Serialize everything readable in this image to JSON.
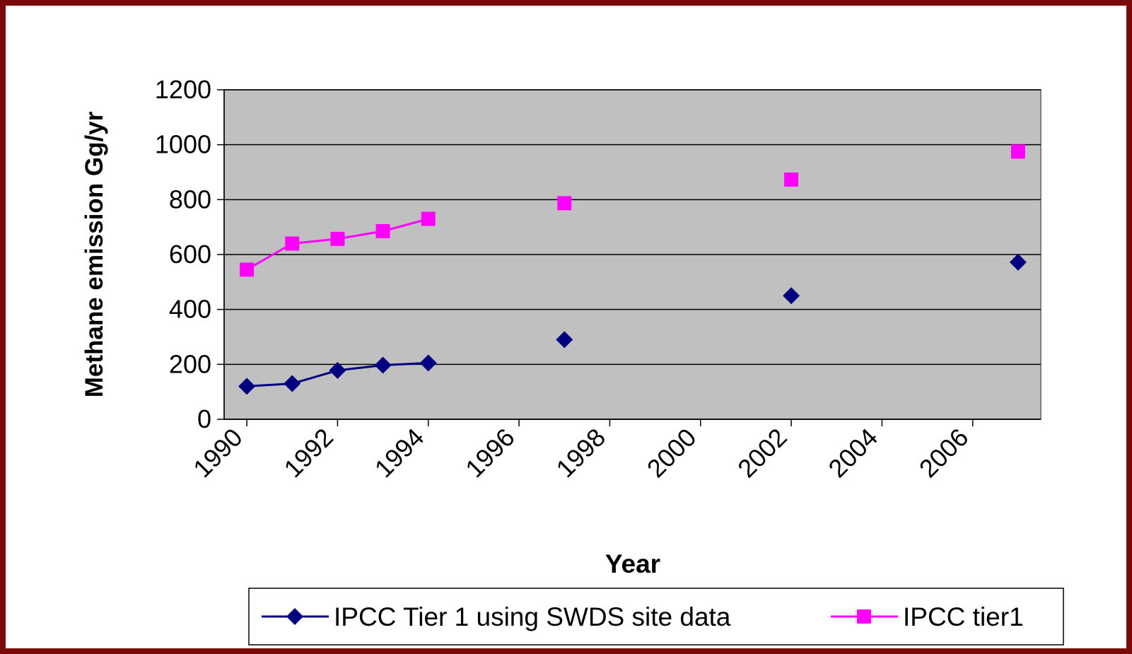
{
  "chart_data": {
    "type": "line",
    "x_label": "Year",
    "y_label": "Methane emission Gg/yr",
    "x": [
      1990,
      1991,
      1992,
      1993,
      1994,
      1995,
      1996,
      1997,
      1998,
      1999,
      2000,
      2001,
      2002,
      2003,
      2004,
      2005,
      2006,
      2007
    ],
    "series": [
      {
        "name": "IPCC Tier 1 using SWDS site data",
        "color": "#000080",
        "marker": "diamond",
        "values": [
          120,
          130,
          178,
          197,
          205,
          null,
          null,
          290,
          null,
          null,
          null,
          null,
          450,
          null,
          null,
          null,
          null,
          572
        ]
      },
      {
        "name": "IPCC tier1",
        "color": "#ff00ff",
        "marker": "square",
        "values": [
          545,
          640,
          657,
          685,
          730,
          null,
          null,
          787,
          null,
          null,
          null,
          null,
          873,
          null,
          null,
          null,
          null,
          975
        ]
      }
    ],
    "xlim": [
      1989.5,
      2007.5
    ],
    "xticks": [
      1990,
      1992,
      1994,
      1996,
      1998,
      2000,
      2002,
      2004,
      2006
    ],
    "ylim": [
      0,
      1200
    ],
    "yticks": [
      0,
      200,
      400,
      600,
      800,
      1000,
      1200
    ],
    "grid": true,
    "legend": "bottom"
  }
}
